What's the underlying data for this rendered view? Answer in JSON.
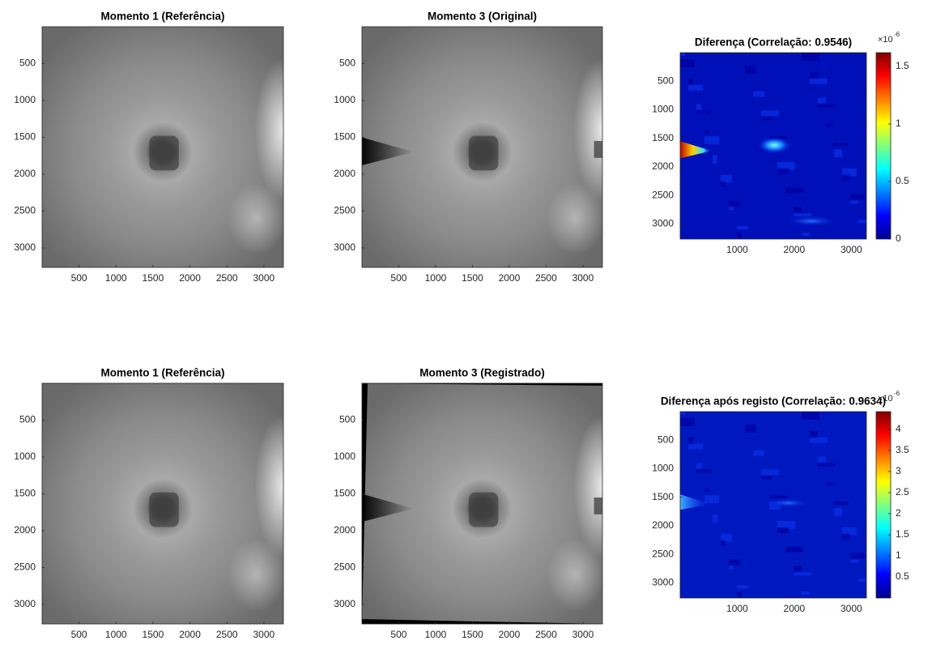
{
  "chart_data": [
    {
      "type": "image",
      "title": "Momento 1 (Referência)",
      "colormap": "gray",
      "y_reversed": true,
      "xlim": [
        0.5,
        3264.5
      ],
      "ylim": [
        0.5,
        3264.5
      ],
      "xticks": [
        500,
        1000,
        1500,
        2000,
        2500,
        3000
      ],
      "yticks": [
        500,
        1000,
        1500,
        2000,
        2500,
        3000
      ]
    },
    {
      "type": "image",
      "title": "Momento 3 (Original)",
      "colormap": "gray",
      "y_reversed": true,
      "xlim": [
        0.5,
        3264.5
      ],
      "ylim": [
        0.5,
        3264.5
      ],
      "xticks": [
        500,
        1000,
        1500,
        2000,
        2500,
        3000
      ],
      "yticks": [
        500,
        1000,
        1500,
        2000,
        2500,
        3000
      ]
    },
    {
      "type": "image",
      "title": "Diferença (Correlação: 0.9546)",
      "colormap": "jet",
      "y_reversed": true,
      "xlim": [
        0.5,
        3264.5
      ],
      "ylim": [
        0.5,
        3264.5
      ],
      "xticks": [
        1000,
        2000,
        3000
      ],
      "yticks": [
        500,
        1000,
        1500,
        2000,
        2500,
        3000
      ],
      "clim": [
        0,
        1.62
      ],
      "cticks": [
        0,
        0.5,
        1,
        1.5
      ],
      "colorbar_scale": {
        "base": "×10",
        "exponent": "-6"
      }
    },
    {
      "type": "image",
      "title": "Momento 1 (Referência)",
      "colormap": "gray",
      "y_reversed": true,
      "xlim": [
        0.5,
        3264.5
      ],
      "ylim": [
        0.5,
        3264.5
      ],
      "xticks": [
        500,
        1000,
        1500,
        2000,
        2500,
        3000
      ],
      "yticks": [
        500,
        1000,
        1500,
        2000,
        2500,
        3000
      ]
    },
    {
      "type": "image",
      "title": "Momento 3 (Registrado)",
      "colormap": "gray",
      "y_reversed": true,
      "xlim": [
        0.5,
        3264.5
      ],
      "ylim": [
        0.5,
        3264.5
      ],
      "xticks": [
        500,
        1000,
        1500,
        2000,
        2500,
        3000
      ],
      "yticks": [
        500,
        1000,
        1500,
        2000,
        2500,
        3000
      ]
    },
    {
      "type": "image",
      "title": "Diferença após registo (Correlação: 0.9634)",
      "colormap": "jet",
      "y_reversed": true,
      "xlim": [
        0.5,
        3264.5
      ],
      "ylim": [
        0.5,
        3264.5
      ],
      "xticks": [
        1000,
        2000,
        3000
      ],
      "yticks": [
        500,
        1000,
        1500,
        2000,
        2500,
        3000
      ],
      "clim": [
        0,
        4.42
      ],
      "cticks": [
        0.5,
        1,
        1.5,
        2,
        2.5,
        3,
        3.5,
        4
      ],
      "colorbar_scale": {
        "base": "×10",
        "exponent": "-6"
      }
    }
  ]
}
